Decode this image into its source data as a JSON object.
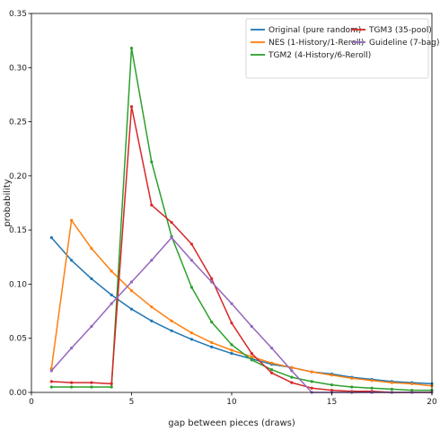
{
  "chart_data": {
    "type": "line",
    "xlabel": "gap between pieces (draws)",
    "ylabel": "probability",
    "xlim": [
      0,
      20
    ],
    "ylim": [
      0,
      0.35
    ],
    "x_ticks": [
      "0",
      "5",
      "10",
      "15",
      "20"
    ],
    "y_ticks": [
      "0.00",
      "0.05",
      "0.10",
      "0.15",
      "0.20",
      "0.25",
      "0.30",
      "0.35"
    ],
    "grid": false,
    "legend_position": "top-right",
    "legend_columns": 2,
    "x": [
      1,
      2,
      3,
      4,
      5,
      6,
      7,
      8,
      9,
      10,
      11,
      12,
      13,
      14,
      15,
      16,
      17,
      18,
      19,
      20
    ],
    "series": [
      {
        "name": "Original (pure random)",
        "color": "#1f77b4",
        "values": [
          0.143,
          0.122,
          0.105,
          0.09,
          0.077,
          0.066,
          0.057,
          0.049,
          0.042,
          0.036,
          0.031,
          0.026,
          0.023,
          0.019,
          0.017,
          0.014,
          0.012,
          0.01,
          0.009,
          0.008
        ]
      },
      {
        "name": "NES (1-History/1-Reroll)",
        "color": "#ff7f0e",
        "values": [
          0.022,
          0.159,
          0.133,
          0.112,
          0.094,
          0.079,
          0.066,
          0.055,
          0.046,
          0.039,
          0.033,
          0.027,
          0.023,
          0.019,
          0.016,
          0.013,
          0.011,
          0.009,
          0.008,
          0.006
        ]
      },
      {
        "name": "TGM2 (4-History/6-Reroll)",
        "color": "#2ca02c",
        "values": [
          0.005,
          0.005,
          0.005,
          0.005,
          0.318,
          0.213,
          0.144,
          0.097,
          0.065,
          0.044,
          0.03,
          0.021,
          0.014,
          0.01,
          0.007,
          0.005,
          0.004,
          0.003,
          0.002,
          0.002
        ]
      },
      {
        "name": "TGM3 (35-pool)",
        "color": "#d62728",
        "values": [
          0.01,
          0.009,
          0.009,
          0.008,
          0.264,
          0.173,
          0.157,
          0.137,
          0.105,
          0.064,
          0.036,
          0.018,
          0.009,
          0.004,
          0.002,
          0.001,
          0.001,
          0.0,
          0.0,
          0.0
        ]
      },
      {
        "name": "Guideline (7-bag)",
        "color": "#9467bd",
        "values": [
          0.02,
          0.041,
          0.061,
          0.082,
          0.102,
          0.122,
          0.143,
          0.122,
          0.102,
          0.082,
          0.061,
          0.041,
          0.02,
          0.0,
          0.0,
          0.0,
          0.0,
          0.0,
          0.0,
          0.0
        ]
      }
    ]
  }
}
